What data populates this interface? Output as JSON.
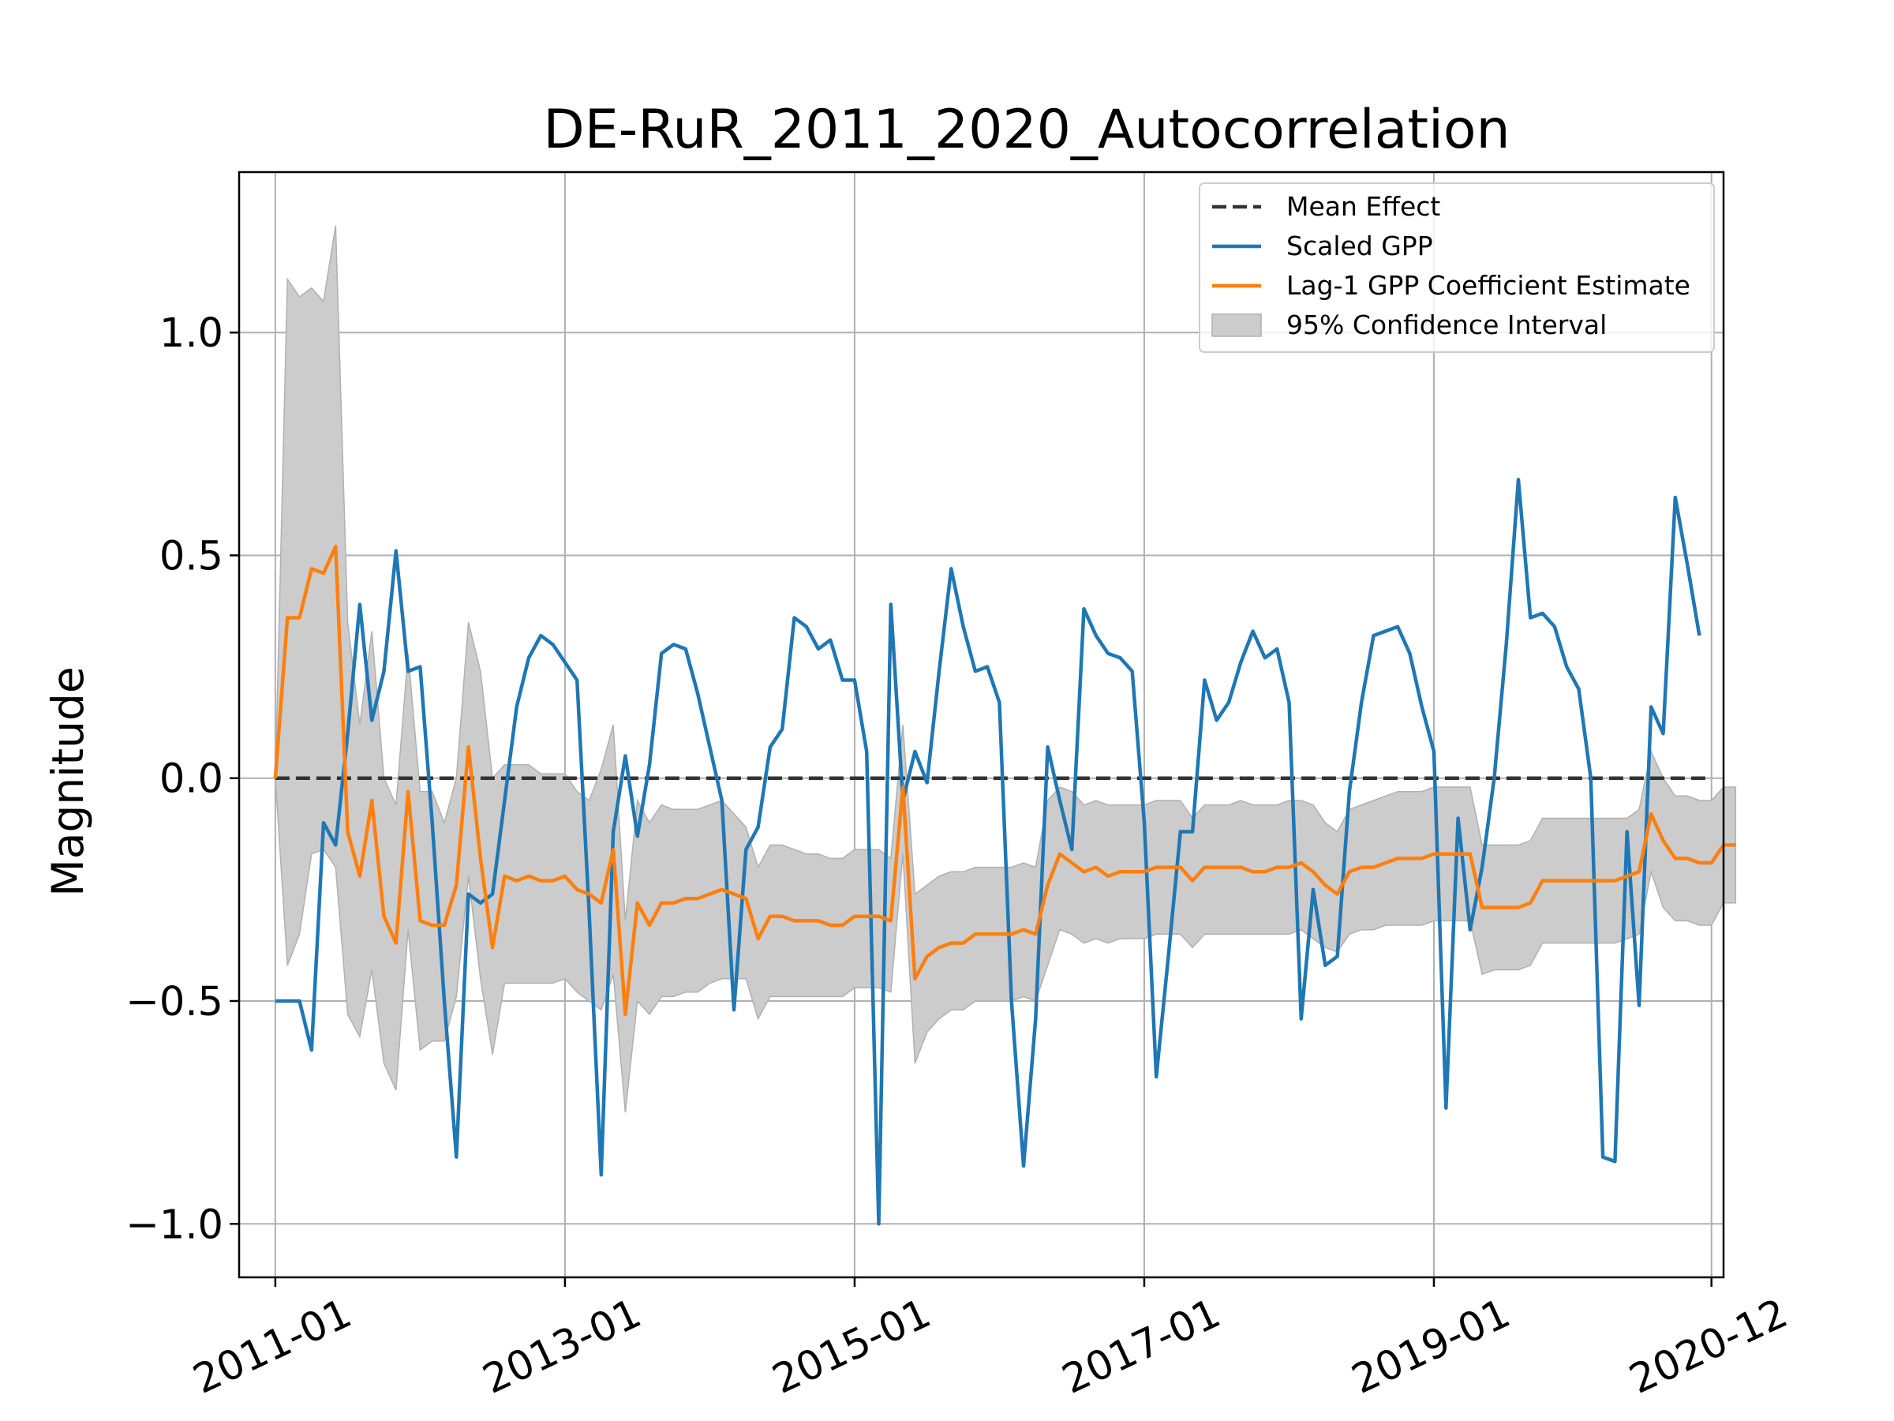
{
  "chart_data": {
    "type": "line",
    "title": "DE-RuR_2011_2020_Autocorrelation",
    "xlabel": "",
    "ylabel": "Magnitude",
    "x_start": "2011-01",
    "x_step_months": 1,
    "xlim": [
      "2010-10",
      "2021-01"
    ],
    "ylim": [
      -1.12,
      1.36
    ],
    "x_ticks": [
      "2011-01",
      "2013-01",
      "2015-01",
      "2017-01",
      "2019-01",
      "2020-12"
    ],
    "y_ticks": [
      -1.0,
      -0.5,
      0.0,
      0.5,
      1.0
    ],
    "y_tick_labels": [
      "−1.0",
      "−0.5",
      "0.0",
      "0.5",
      "1.0"
    ],
    "grid": true,
    "legend": {
      "placement": "top-right",
      "entries": [
        "Mean Effect",
        "Scaled GPP",
        "Lag-1 GPP Coefficient Estimate",
        "95% Confidence Interval"
      ]
    },
    "series": [
      {
        "name": "Mean Effect",
        "style": "dashed",
        "color": "#333333",
        "values": [
          0,
          0,
          0,
          0,
          0,
          0,
          0,
          0,
          0,
          0,
          0,
          0,
          0,
          0,
          0,
          0,
          0,
          0,
          0,
          0,
          0,
          0,
          0,
          0,
          0,
          0,
          0,
          0,
          0,
          0,
          0,
          0,
          0,
          0,
          0,
          0,
          0,
          0,
          0,
          0,
          0,
          0,
          0,
          0,
          0,
          0,
          0,
          0,
          0,
          0,
          0,
          0,
          0,
          0,
          0,
          0,
          0,
          0,
          0,
          0,
          0,
          0,
          0,
          0,
          0,
          0,
          0,
          0,
          0,
          0,
          0,
          0,
          0,
          0,
          0,
          0,
          0,
          0,
          0,
          0,
          0,
          0,
          0,
          0,
          0,
          0,
          0,
          0,
          0,
          0,
          0,
          0,
          0,
          0,
          0,
          0,
          0,
          0,
          0,
          0,
          0,
          0,
          0,
          0,
          0,
          0,
          0,
          0,
          0,
          0,
          0,
          0,
          0,
          0,
          0,
          0,
          0,
          0,
          0,
          0
        ]
      },
      {
        "name": "Scaled GPP",
        "color": "#1f77b4",
        "values": [
          -0.5,
          -0.5,
          -0.5,
          -0.61,
          -0.1,
          -0.15,
          0.1,
          0.39,
          0.13,
          0.24,
          0.51,
          0.24,
          0.25,
          -0.1,
          -0.5,
          -0.85,
          -0.26,
          -0.28,
          -0.26,
          -0.05,
          0.16,
          0.27,
          0.32,
          0.3,
          0.26,
          0.22,
          -0.3,
          -0.89,
          -0.12,
          0.05,
          -0.13,
          0.03,
          0.28,
          0.3,
          0.29,
          0.19,
          0.07,
          -0.05,
          -0.52,
          -0.16,
          -0.11,
          0.07,
          0.11,
          0.36,
          0.34,
          0.29,
          0.31,
          0.22,
          0.22,
          0.06,
          -1.0,
          0.39,
          -0.05,
          0.06,
          -0.01,
          0.24,
          0.47,
          0.34,
          0.24,
          0.25,
          0.17,
          -0.5,
          -0.87,
          -0.54,
          0.07,
          -0.05,
          -0.16,
          0.38,
          0.32,
          0.28,
          0.27,
          0.24,
          -0.1,
          -0.67,
          -0.4,
          -0.12,
          -0.12,
          0.22,
          0.13,
          0.17,
          0.26,
          0.33,
          0.27,
          0.29,
          0.17,
          -0.54,
          -0.25,
          -0.42,
          -0.4,
          -0.03,
          0.17,
          0.32,
          0.33,
          0.34,
          0.28,
          0.16,
          0.06,
          -0.74,
          -0.09,
          -0.34,
          -0.2,
          0.0,
          0.3,
          0.67,
          0.36,
          0.37,
          0.34,
          0.25,
          0.2,
          0.0,
          -0.85,
          -0.86,
          -0.12,
          -0.51,
          0.16,
          0.1,
          0.63,
          0.48,
          0.32
        ]
      },
      {
        "name": "Lag-1 GPP Coefficient Estimate",
        "color": "#ff7f0e",
        "values": [
          0.0,
          0.36,
          0.36,
          0.47,
          0.46,
          0.52,
          -0.12,
          -0.22,
          -0.05,
          -0.31,
          -0.37,
          -0.03,
          -0.32,
          -0.33,
          -0.33,
          -0.24,
          0.07,
          -0.18,
          -0.38,
          -0.22,
          -0.23,
          -0.22,
          -0.23,
          -0.23,
          -0.22,
          -0.25,
          -0.26,
          -0.28,
          -0.16,
          -0.53,
          -0.28,
          -0.33,
          -0.28,
          -0.28,
          -0.27,
          -0.27,
          -0.26,
          -0.25,
          -0.26,
          -0.27,
          -0.36,
          -0.31,
          -0.31,
          -0.32,
          -0.32,
          -0.32,
          -0.33,
          -0.33,
          -0.31,
          -0.31,
          -0.31,
          -0.32,
          -0.02,
          -0.45,
          -0.4,
          -0.38,
          -0.37,
          -0.37,
          -0.35,
          -0.35,
          -0.35,
          -0.35,
          -0.34,
          -0.35,
          -0.24,
          -0.17,
          -0.19,
          -0.21,
          -0.2,
          -0.22,
          -0.21,
          -0.21,
          -0.21,
          -0.2,
          -0.2,
          -0.2,
          -0.23,
          -0.2,
          -0.2,
          -0.2,
          -0.2,
          -0.21,
          -0.21,
          -0.2,
          -0.2,
          -0.19,
          -0.21,
          -0.24,
          -0.26,
          -0.21,
          -0.2,
          -0.2,
          -0.19,
          -0.18,
          -0.18,
          -0.18,
          -0.17,
          -0.17,
          -0.17,
          -0.17,
          -0.29,
          -0.29,
          -0.29,
          -0.29,
          -0.28,
          -0.23,
          -0.23,
          -0.23,
          -0.23,
          -0.23,
          -0.23,
          -0.23,
          -0.22,
          -0.21,
          -0.08,
          -0.14,
          -0.18,
          -0.18,
          -0.19,
          -0.19,
          -0.15,
          -0.15
        ]
      }
    ],
    "confidence_interval": {
      "name": "95% Confidence Interval",
      "color": "#cccccc",
      "upper": [
        0.0,
        1.12,
        1.08,
        1.1,
        1.07,
        1.24,
        0.35,
        0.12,
        0.33,
        0.0,
        -0.06,
        0.28,
        -0.03,
        -0.03,
        -0.1,
        0.0,
        0.35,
        0.24,
        0.0,
        0.03,
        0.03,
        0.03,
        0.01,
        0.01,
        0.01,
        -0.03,
        -0.05,
        0.02,
        0.12,
        -0.32,
        -0.05,
        -0.1,
        -0.06,
        -0.07,
        -0.07,
        -0.07,
        -0.06,
        -0.05,
        -0.08,
        -0.11,
        -0.2,
        -0.15,
        -0.15,
        -0.16,
        -0.17,
        -0.17,
        -0.18,
        -0.18,
        -0.16,
        -0.16,
        -0.16,
        -0.18,
        0.12,
        -0.26,
        -0.24,
        -0.22,
        -0.21,
        -0.21,
        -0.2,
        -0.2,
        -0.2,
        -0.2,
        -0.19,
        -0.2,
        -0.05,
        -0.02,
        -0.03,
        -0.06,
        -0.05,
        -0.06,
        -0.06,
        -0.06,
        -0.06,
        -0.05,
        -0.05,
        -0.05,
        -0.09,
        -0.06,
        -0.06,
        -0.06,
        -0.05,
        -0.06,
        -0.06,
        -0.06,
        -0.05,
        -0.05,
        -0.06,
        -0.1,
        -0.12,
        -0.07,
        -0.06,
        -0.05,
        -0.04,
        -0.03,
        -0.03,
        -0.03,
        -0.02,
        -0.02,
        -0.02,
        -0.02,
        -0.15,
        -0.15,
        -0.15,
        -0.15,
        -0.14,
        -0.09,
        -0.09,
        -0.09,
        -0.09,
        -0.09,
        -0.09,
        -0.09,
        -0.09,
        -0.07,
        0.06,
        0.0,
        -0.04,
        -0.04,
        -0.05,
        -0.05,
        -0.02,
        -0.02
      ],
      "lower": [
        0.0,
        -0.42,
        -0.35,
        -0.17,
        -0.16,
        -0.2,
        -0.53,
        -0.58,
        -0.43,
        -0.64,
        -0.7,
        -0.34,
        -0.61,
        -0.59,
        -0.59,
        -0.49,
        -0.22,
        -0.45,
        -0.62,
        -0.46,
        -0.46,
        -0.46,
        -0.46,
        -0.46,
        -0.45,
        -0.48,
        -0.5,
        -0.52,
        -0.44,
        -0.75,
        -0.5,
        -0.53,
        -0.49,
        -0.49,
        -0.48,
        -0.48,
        -0.46,
        -0.45,
        -0.45,
        -0.45,
        -0.54,
        -0.49,
        -0.49,
        -0.49,
        -0.49,
        -0.49,
        -0.49,
        -0.49,
        -0.47,
        -0.47,
        -0.47,
        -0.48,
        -0.17,
        -0.64,
        -0.57,
        -0.54,
        -0.52,
        -0.52,
        -0.5,
        -0.5,
        -0.5,
        -0.5,
        -0.49,
        -0.5,
        -0.42,
        -0.34,
        -0.35,
        -0.37,
        -0.36,
        -0.37,
        -0.36,
        -0.36,
        -0.36,
        -0.35,
        -0.35,
        -0.35,
        -0.38,
        -0.35,
        -0.35,
        -0.35,
        -0.35,
        -0.35,
        -0.35,
        -0.35,
        -0.35,
        -0.34,
        -0.36,
        -0.38,
        -0.39,
        -0.35,
        -0.34,
        -0.34,
        -0.33,
        -0.33,
        -0.33,
        -0.33,
        -0.32,
        -0.32,
        -0.32,
        -0.32,
        -0.44,
        -0.43,
        -0.43,
        -0.43,
        -0.42,
        -0.37,
        -0.37,
        -0.37,
        -0.37,
        -0.37,
        -0.37,
        -0.37,
        -0.36,
        -0.35,
        -0.21,
        -0.29,
        -0.32,
        -0.32,
        -0.33,
        -0.33,
        -0.28,
        -0.28
      ]
    }
  }
}
